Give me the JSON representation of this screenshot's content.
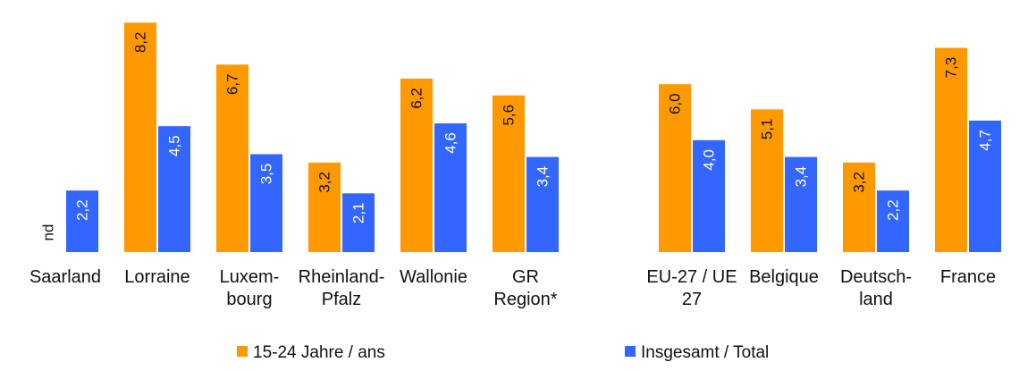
{
  "chart_data": {
    "type": "bar",
    "title": "",
    "xlabel": "",
    "ylabel": "",
    "ylim": [
      0,
      8.5
    ],
    "grid": false,
    "legend_placement": "bottom",
    "colors": {
      "youth": "#FF9900",
      "total": "#3366FF"
    },
    "groups": [
      {
        "categories": [
          [
            "Saarland"
          ],
          [
            "Lorraine"
          ],
          [
            "Luxem-",
            "bourg"
          ],
          [
            "Rheinland-",
            "Pfalz"
          ],
          [
            "Wallonie"
          ],
          [
            "GR",
            "Region*"
          ]
        ]
      },
      {
        "categories": [
          [
            "EU-27 / UE",
            "27"
          ],
          [
            "Belgique"
          ],
          [
            "Deutsch-",
            "land"
          ],
          [
            "France"
          ]
        ]
      }
    ],
    "series": [
      {
        "name": "15-24 Jahre / ans",
        "values": [
          null,
          8.2,
          6.7,
          3.2,
          6.2,
          5.6,
          6.0,
          5.1,
          3.2,
          7.3
        ],
        "labels": [
          "nd",
          "8,2",
          "6,7",
          "3,2",
          "6,2",
          "5,6",
          "6,0",
          "5,1",
          "3,2",
          "7,3"
        ]
      },
      {
        "name": "Insgesamt / Total",
        "values": [
          2.2,
          4.5,
          3.5,
          2.1,
          4.6,
          3.4,
          4.0,
          3.4,
          2.2,
          4.7
        ],
        "labels": [
          "2,2",
          "4,5",
          "3,5",
          "2,1",
          "4,6",
          "3,4",
          "4,0",
          "3,4",
          "2,2",
          "4,7"
        ]
      }
    ]
  }
}
